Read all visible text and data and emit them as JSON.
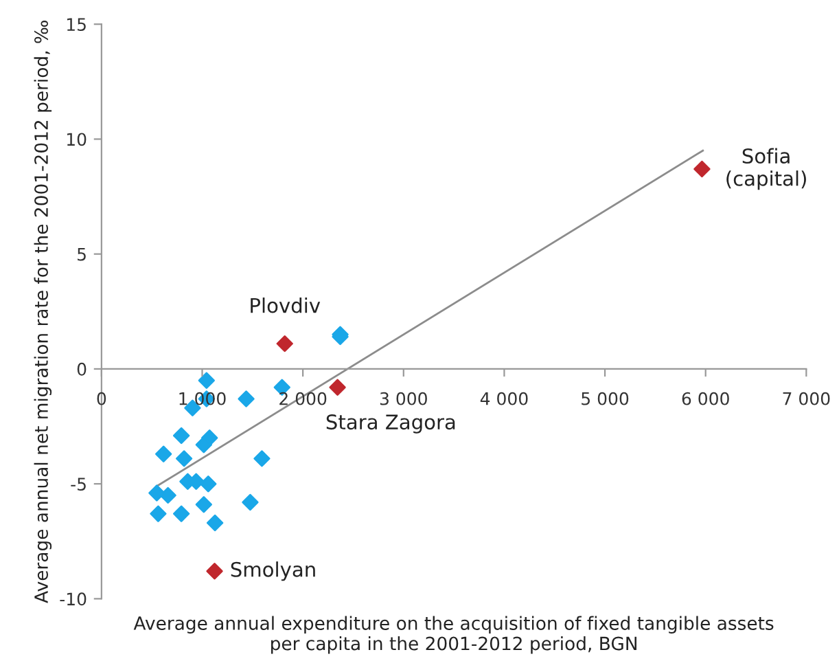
{
  "chart_data": {
    "type": "scatter",
    "xlabel": "Average annual expenditure on the acquisition of fixed tangible assets\nper capita in the 2001-2012 period, BGN",
    "ylabel": "Average annual net migration rate for the 2001-2012 period, ‰",
    "xlim": [
      0,
      7000
    ],
    "ylim": [
      -10,
      15
    ],
    "xticks": [
      {
        "value": 0,
        "label": "0"
      },
      {
        "value": 1000,
        "label": "1 000"
      },
      {
        "value": 2000,
        "label": "2 000"
      },
      {
        "value": 3000,
        "label": "3 000"
      },
      {
        "value": 4000,
        "label": "4 000"
      },
      {
        "value": 5000,
        "label": "5 000"
      },
      {
        "value": 6000,
        "label": "6 000"
      },
      {
        "value": 7000,
        "label": "7 000"
      }
    ],
    "yticks": [
      -10,
      -5,
      0,
      5,
      10,
      15
    ],
    "grid": false,
    "legend": false,
    "marker": "diamond",
    "series": [
      {
        "color": "#1aa7e8",
        "x": [
          1043,
          1793,
          1437,
          1043,
          904,
          793,
          1073,
          1016,
          616,
          820,
          1593,
          856,
          940,
          1060,
          549,
          660,
          1477,
          1016,
          563,
          793,
          1127,
          2371,
          2371
        ],
        "values": [
          -0.5,
          -0.8,
          -1.3,
          -1.3,
          -1.7,
          -2.9,
          -3.0,
          -3.3,
          -3.7,
          -3.9,
          -3.9,
          -4.9,
          -4.9,
          -5.0,
          -5.4,
          -5.5,
          -5.8,
          -5.9,
          -6.3,
          -6.3,
          -6.7,
          1.5,
          1.4
        ]
      },
      {
        "color": "#c0272d",
        "x": [
          1820,
          2344,
          1123,
          5964
        ],
        "values": [
          1.1,
          -0.8,
          -8.8,
          8.7
        ]
      },
      {
        "type": "line",
        "color": "#8c8c8c",
        "marker": "none",
        "x": [
          549,
          5973
        ],
        "values": [
          -5.1,
          9.5
        ]
      }
    ],
    "annotations": [
      {
        "text": "Plovdiv",
        "x": 1820,
        "y": 1.1
      },
      {
        "text": "Stara Zagora",
        "x": 2344,
        "y": -0.8
      },
      {
        "text": "Smolyan",
        "x": 1123,
        "y": -8.8
      },
      {
        "text": "Sofia\n(capital)",
        "x": 5964,
        "y": 8.7
      }
    ]
  }
}
